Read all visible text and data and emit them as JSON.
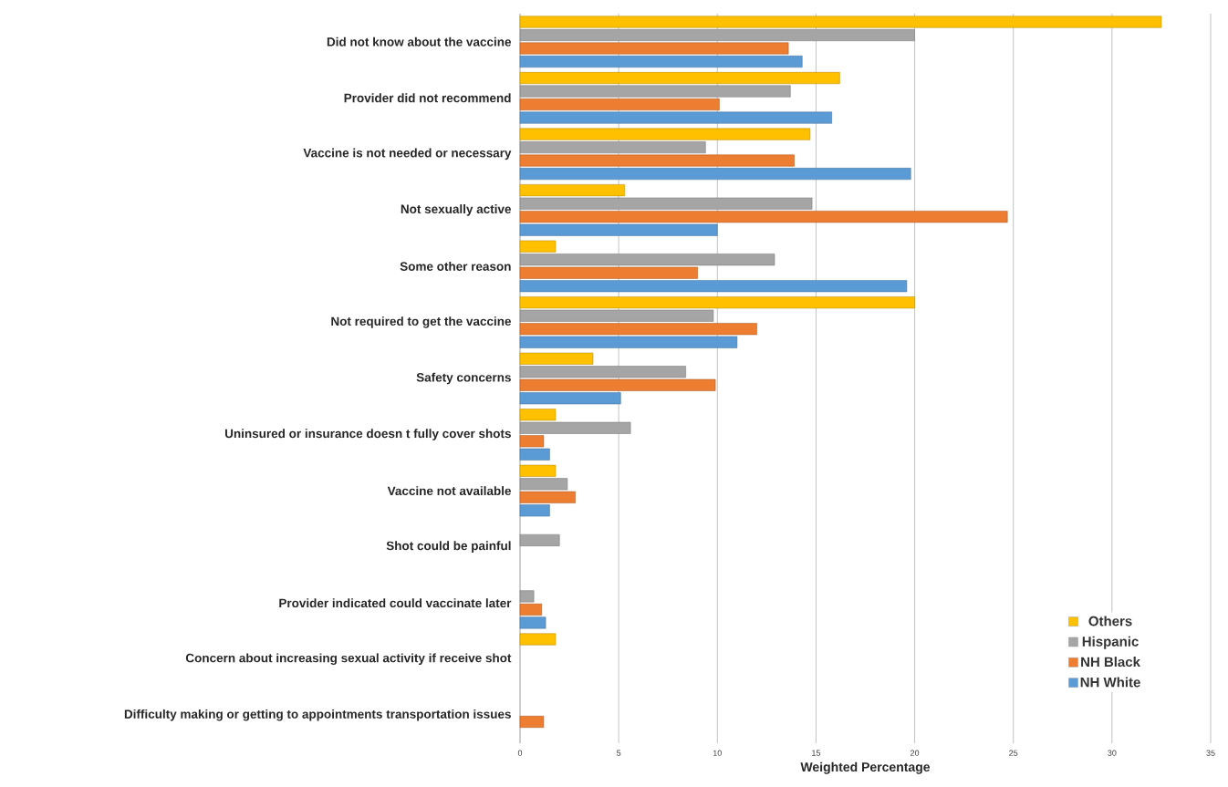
{
  "chart_data": {
    "type": "bar",
    "orientation": "horizontal",
    "xlabel": "Weighted Percentage",
    "categories": [
      "Did not know about the vaccine",
      "Provider did not recommend",
      "Vaccine is not needed or necessary",
      "Not sexually active",
      "Some other reason",
      "Not required to get the vaccine",
      "Safety concerns",
      "Uninsured or insurance doesn t fully cover shots",
      "Vaccine not available",
      "Shot could be painful",
      "Provider indicated could vaccinate later",
      "Concern about increasing sexual activity if receive shot",
      "Difficulty making or getting to appointments transportation issues"
    ],
    "series": [
      {
        "name": "Others",
        "color": "#ffc000",
        "values": [
          32.5,
          16.2,
          14.7,
          5.3,
          1.8,
          20.0,
          3.7,
          1.8,
          1.8,
          null,
          null,
          1.8,
          null
        ]
      },
      {
        "name": "Hispanic",
        "color": "#a5a5a5",
        "values": [
          20.0,
          13.7,
          9.4,
          14.8,
          12.9,
          9.8,
          8.4,
          5.6,
          2.4,
          2.0,
          0.7,
          null,
          null
        ]
      },
      {
        "name": "NH Black",
        "color": "#ed7d31",
        "values": [
          13.6,
          10.1,
          13.9,
          24.7,
          9.0,
          12.0,
          9.9,
          1.2,
          2.8,
          null,
          1.1,
          null,
          1.2
        ]
      },
      {
        "name": "NH White",
        "color": "#5b9bd5",
        "values": [
          14.3,
          15.8,
          19.8,
          10.0,
          19.6,
          11.0,
          5.1,
          1.5,
          1.5,
          null,
          1.3,
          null,
          null
        ]
      }
    ],
    "xlim": [
      0,
      35
    ],
    "xticks": [
      0,
      5,
      10,
      15,
      20,
      25,
      30,
      35
    ],
    "grid": "x",
    "legend": "bottom right"
  }
}
